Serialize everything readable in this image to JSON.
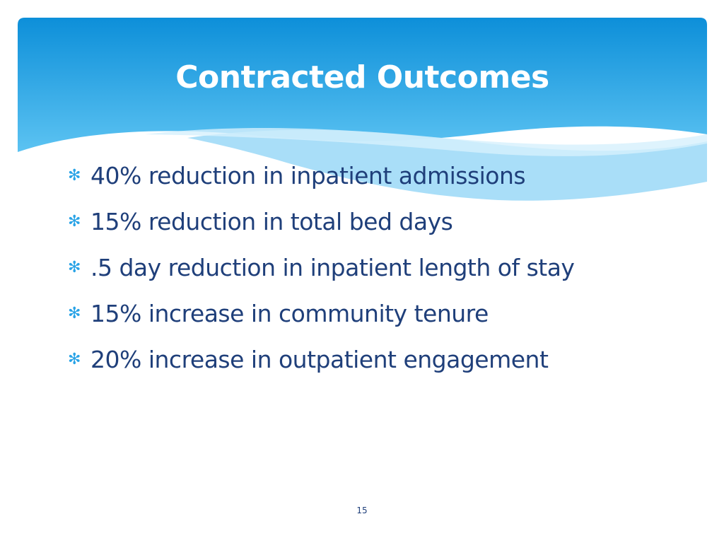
{
  "slide": {
    "title": "Contracted Outcomes",
    "bullets": [
      {
        "text": "40% reduction in inpatient admissions"
      },
      {
        "text": "15% reduction in total bed days"
      },
      {
        "text": ".5 day reduction in inpatient length of stay"
      },
      {
        "text": "15% increase in community tenure"
      },
      {
        "text": "20% increase in outpatient engagement"
      }
    ],
    "bullet_symbol": "✻",
    "page_number": "15"
  },
  "colors": {
    "header_gradient_top": "#0d8fd9",
    "header_gradient_bottom": "#5cc3f2",
    "wave_light": "#9ad8f7",
    "title_text": "#ffffff",
    "body_text": "#1f3f7a",
    "bullet_marker": "#29a3e6"
  },
  "icons": {
    "bullet": "asterisk-bullet-icon"
  }
}
